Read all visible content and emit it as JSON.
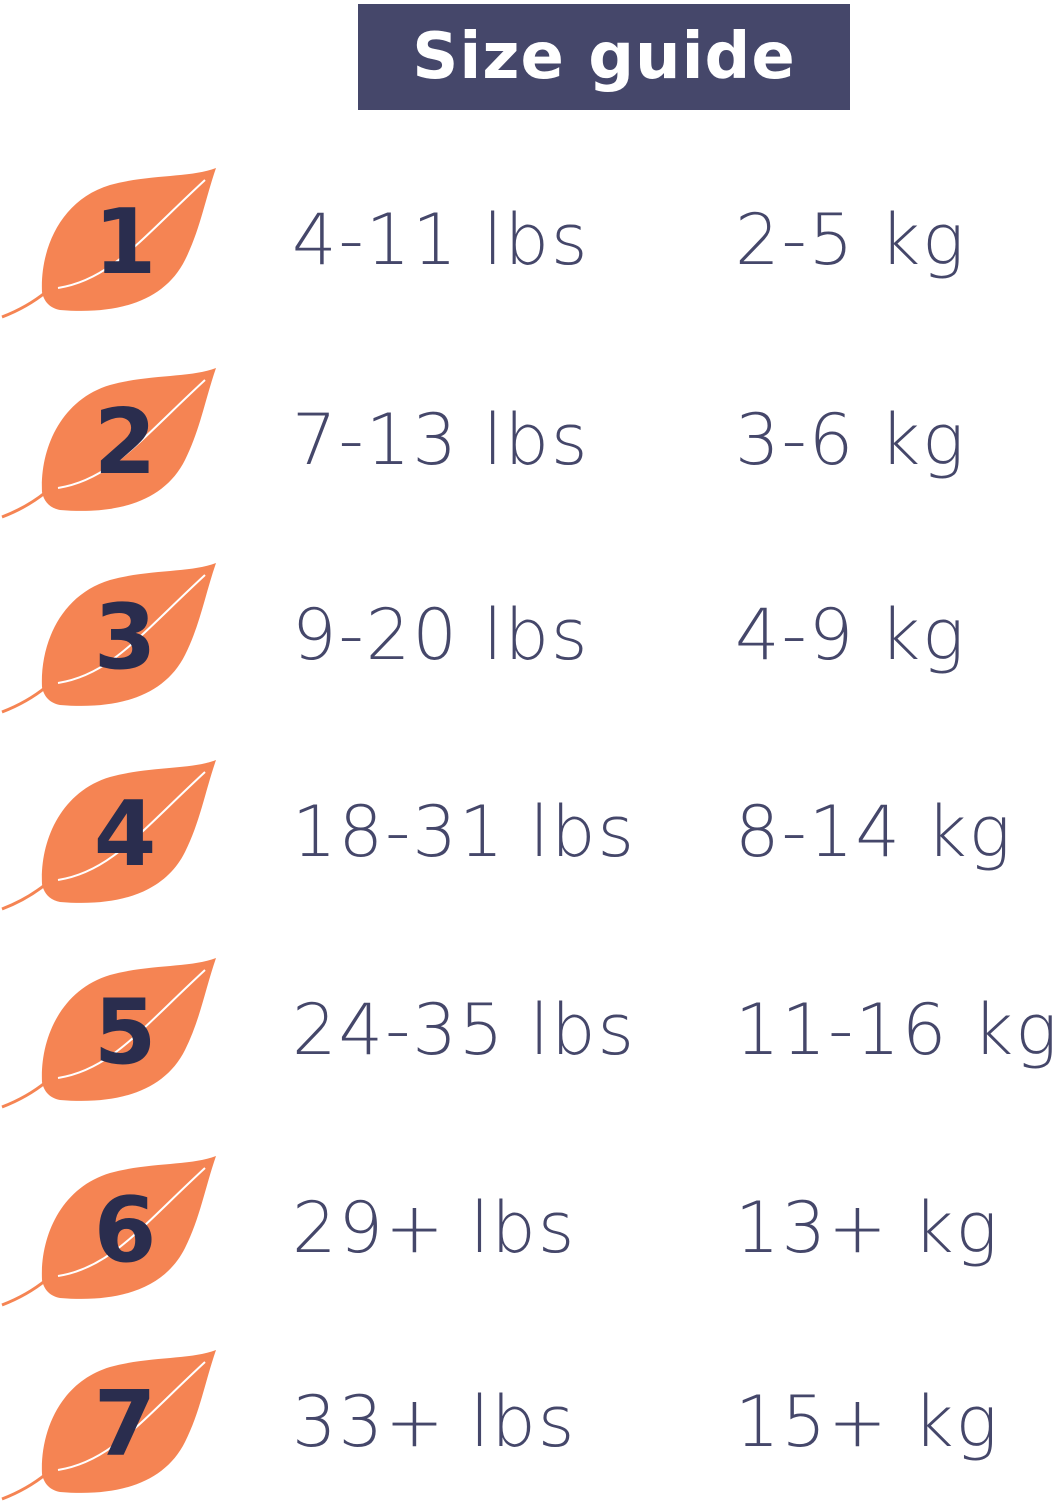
{
  "title": "Size guide",
  "colors": {
    "leaf": "#F58453",
    "number": "#2A2D4E",
    "text": "#45476A",
    "title_bg": "#45476A"
  },
  "sizes": [
    {
      "size": "1",
      "lbs": "4-11 lbs",
      "kg": "2-5 kg"
    },
    {
      "size": "2",
      "lbs": "7-13 lbs",
      "kg": "3-6 kg"
    },
    {
      "size": "3",
      "lbs": "9-20 lbs",
      "kg": "4-9 kg"
    },
    {
      "size": "4",
      "lbs": "18-31 lbs",
      "kg": "8-14 kg"
    },
    {
      "size": "5",
      "lbs": "24-35 lbs",
      "kg": "11-16 kg"
    },
    {
      "size": "6",
      "lbs": "29+ lbs",
      "kg": "13+ kg"
    },
    {
      "size": "7",
      "lbs": "33+ lbs",
      "kg": "15+ kg"
    }
  ]
}
